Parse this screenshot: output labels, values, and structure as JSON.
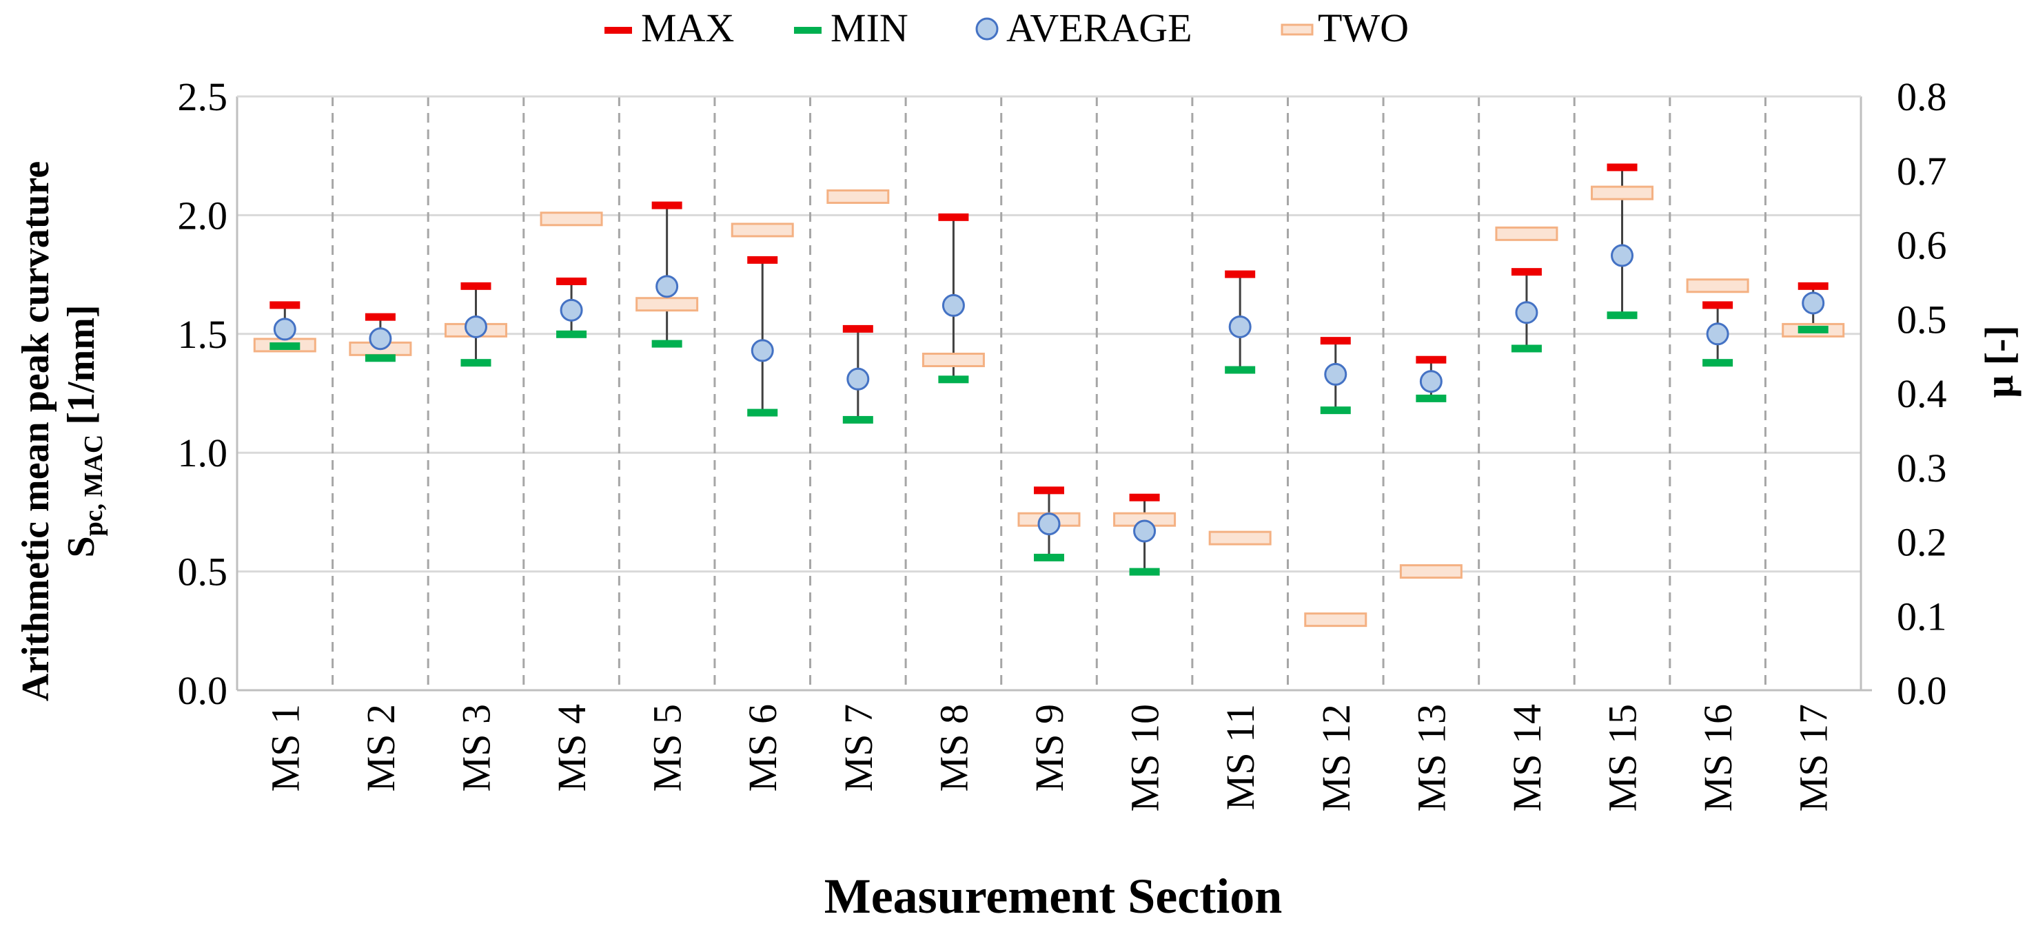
{
  "chart_data": {
    "type": "error-bar",
    "title": "",
    "legend": {
      "position": "top",
      "max": "MAX",
      "min": "MIN",
      "average": "AVERAGE",
      "two": "TWO"
    },
    "xlabel": "Measurement Section",
    "ylabel_line1": "Arithmetic mean peak curvature",
    "ylabel_main": "S",
    "ylabel_sub": "pc, MAC",
    "ylabel_unit": " [1/mm]",
    "y2label": "μ [-]",
    "ylim": [
      0,
      2.5
    ],
    "y2lim": [
      0,
      0.8
    ],
    "yticks": [
      "0.0",
      "0.5",
      "1.0",
      "1.5",
      "2.0",
      "2.5"
    ],
    "y2ticks": [
      "0.0",
      "0.1",
      "0.2",
      "0.3",
      "0.4",
      "0.5",
      "0.6",
      "0.7",
      "0.8"
    ],
    "categories": [
      "MS 1",
      "MS 2",
      "MS 3",
      "MS 4",
      "MS 5",
      "MS 6",
      "MS 7",
      "MS 8",
      "MS 9",
      "MS 10",
      "MS 11",
      "MS 12",
      "MS 13",
      "MS 14",
      "MS 15",
      "MS 16",
      "MS 17"
    ],
    "series": [
      {
        "name": "MAX",
        "axis": "left",
        "values": [
          1.62,
          1.57,
          1.7,
          1.72,
          2.04,
          1.81,
          1.52,
          1.99,
          0.84,
          0.81,
          1.75,
          1.47,
          1.39,
          1.76,
          2.2,
          1.62,
          1.7
        ]
      },
      {
        "name": "MIN",
        "axis": "left",
        "values": [
          1.45,
          1.4,
          1.38,
          1.5,
          1.46,
          1.17,
          1.14,
          1.31,
          0.56,
          0.5,
          1.35,
          1.18,
          1.23,
          1.44,
          1.58,
          1.38,
          1.52
        ]
      },
      {
        "name": "AVERAGE",
        "axis": "left",
        "values": [
          1.52,
          1.48,
          1.53,
          1.6,
          1.7,
          1.43,
          1.31,
          1.62,
          0.7,
          0.67,
          1.53,
          1.33,
          1.3,
          1.59,
          1.83,
          1.5,
          1.63
        ]
      },
      {
        "name": "TWO",
        "axis": "right",
        "values": [
          0.465,
          0.46,
          0.485,
          0.635,
          0.52,
          0.62,
          0.665,
          0.445,
          0.23,
          0.23,
          0.205,
          0.095,
          0.16,
          0.615,
          0.67,
          0.545,
          0.485
        ]
      }
    ]
  },
  "colors": {
    "max": "#ee0000",
    "min": "#00b050",
    "average_fill": "#b4cde9",
    "average_stroke": "#4472c4",
    "two_fill": "#fbe3d3",
    "two_stroke": "#f4b183",
    "whisker": "#404040",
    "grid": "#d9d9d9",
    "vgrid": "#a6a6a6",
    "axis": "#bfbfbf"
  }
}
